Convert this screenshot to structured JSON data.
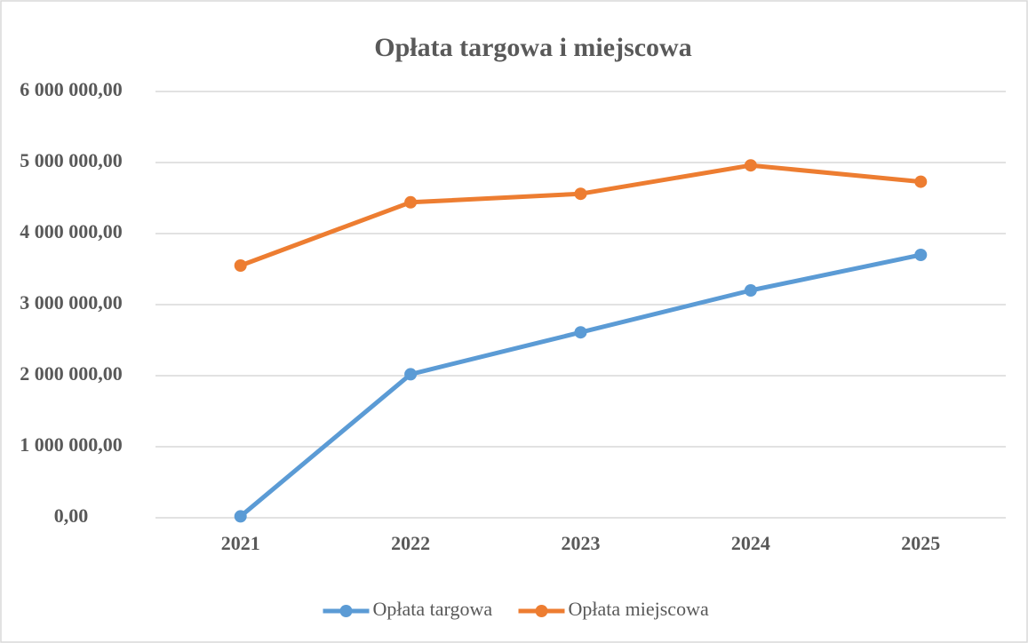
{
  "chart_data": {
    "type": "line",
    "title": "Opłata targowa i miejscowa",
    "categories": [
      "2021",
      "2022",
      "2023",
      "2024",
      "2025"
    ],
    "series": [
      {
        "name": "Opłata targowa",
        "color": "#5b9bd5",
        "values": [
          20000,
          2020000,
          2610000,
          3200000,
          3700000
        ]
      },
      {
        "name": "Opłata miejscowa",
        "color": "#ed7d31",
        "values": [
          3550000,
          4440000,
          4560000,
          4960000,
          4730000
        ]
      }
    ],
    "ylim": [
      0,
      6000000
    ],
    "yticks": [
      {
        "value": 0,
        "label": "0,00"
      },
      {
        "value": 1000000,
        "label": "1 000 000,00"
      },
      {
        "value": 2000000,
        "label": "2 000 000,00"
      },
      {
        "value": 3000000,
        "label": "3 000 000,00"
      },
      {
        "value": 4000000,
        "label": "4 000 000,00"
      },
      {
        "value": 5000000,
        "label": "5 000 000,00"
      },
      {
        "value": 6000000,
        "label": "6 000 000,00"
      }
    ],
    "grid": true,
    "legend": "bottom"
  }
}
